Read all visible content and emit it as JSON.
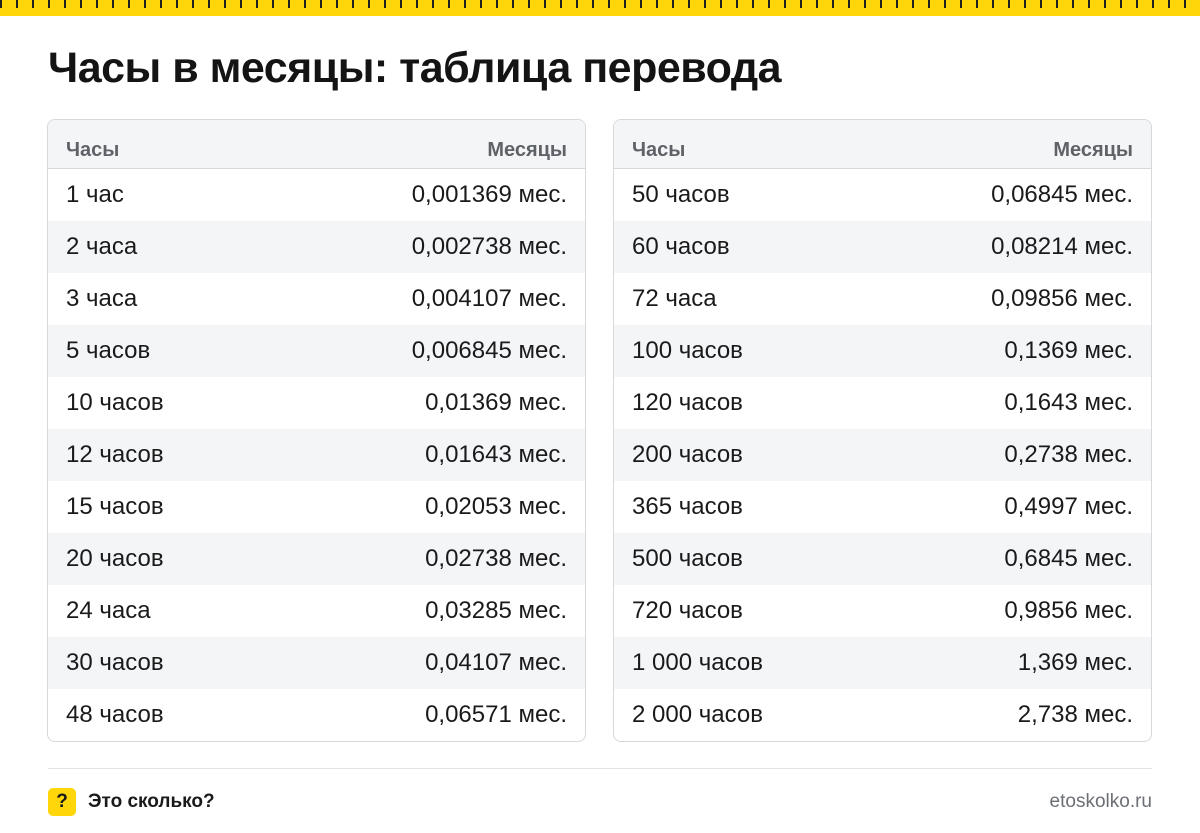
{
  "title": "Часы в месяцы: таблица перевода",
  "table_header": {
    "col1": "Часы",
    "col2": "Месяцы"
  },
  "left_table": [
    {
      "hours": "1 час",
      "months": "0,001369 мес."
    },
    {
      "hours": "2 часа",
      "months": "0,002738 мес."
    },
    {
      "hours": "3 часа",
      "months": "0,004107 мес."
    },
    {
      "hours": "5 часов",
      "months": "0,006845 мес."
    },
    {
      "hours": "10 часов",
      "months": "0,01369 мес."
    },
    {
      "hours": "12 часов",
      "months": "0,01643 мес."
    },
    {
      "hours": "15 часов",
      "months": "0,02053 мес."
    },
    {
      "hours": "20 часов",
      "months": "0,02738 мес."
    },
    {
      "hours": "24 часа",
      "months": "0,03285 мес."
    },
    {
      "hours": "30 часов",
      "months": "0,04107 мес."
    },
    {
      "hours": "48 часов",
      "months": "0,06571 мес."
    }
  ],
  "right_table": [
    {
      "hours": "50 часов",
      "months": "0,06845 мес."
    },
    {
      "hours": "60 часов",
      "months": "0,08214 мес."
    },
    {
      "hours": "72 часа",
      "months": "0,09856 мес."
    },
    {
      "hours": "100 часов",
      "months": "0,1369 мес."
    },
    {
      "hours": "120 часов",
      "months": "0,1643 мес."
    },
    {
      "hours": "200 часов",
      "months": "0,2738 мес."
    },
    {
      "hours": "365 часов",
      "months": "0,4997 мес."
    },
    {
      "hours": "500 часов",
      "months": "0,6845 мес."
    },
    {
      "hours": "720 часов",
      "months": "0,9856 мес."
    },
    {
      "hours": "1 000 часов",
      "months": "1,369 мес."
    },
    {
      "hours": "2 000 часов",
      "months": "2,738 мес."
    }
  ],
  "footer": {
    "badge": "?",
    "brand": "Это сколько?",
    "site": "etoskolko.ru"
  },
  "colors": {
    "accent": "#ffd60a",
    "stripe": "#f4f5f7",
    "border": "#d6d8db"
  }
}
